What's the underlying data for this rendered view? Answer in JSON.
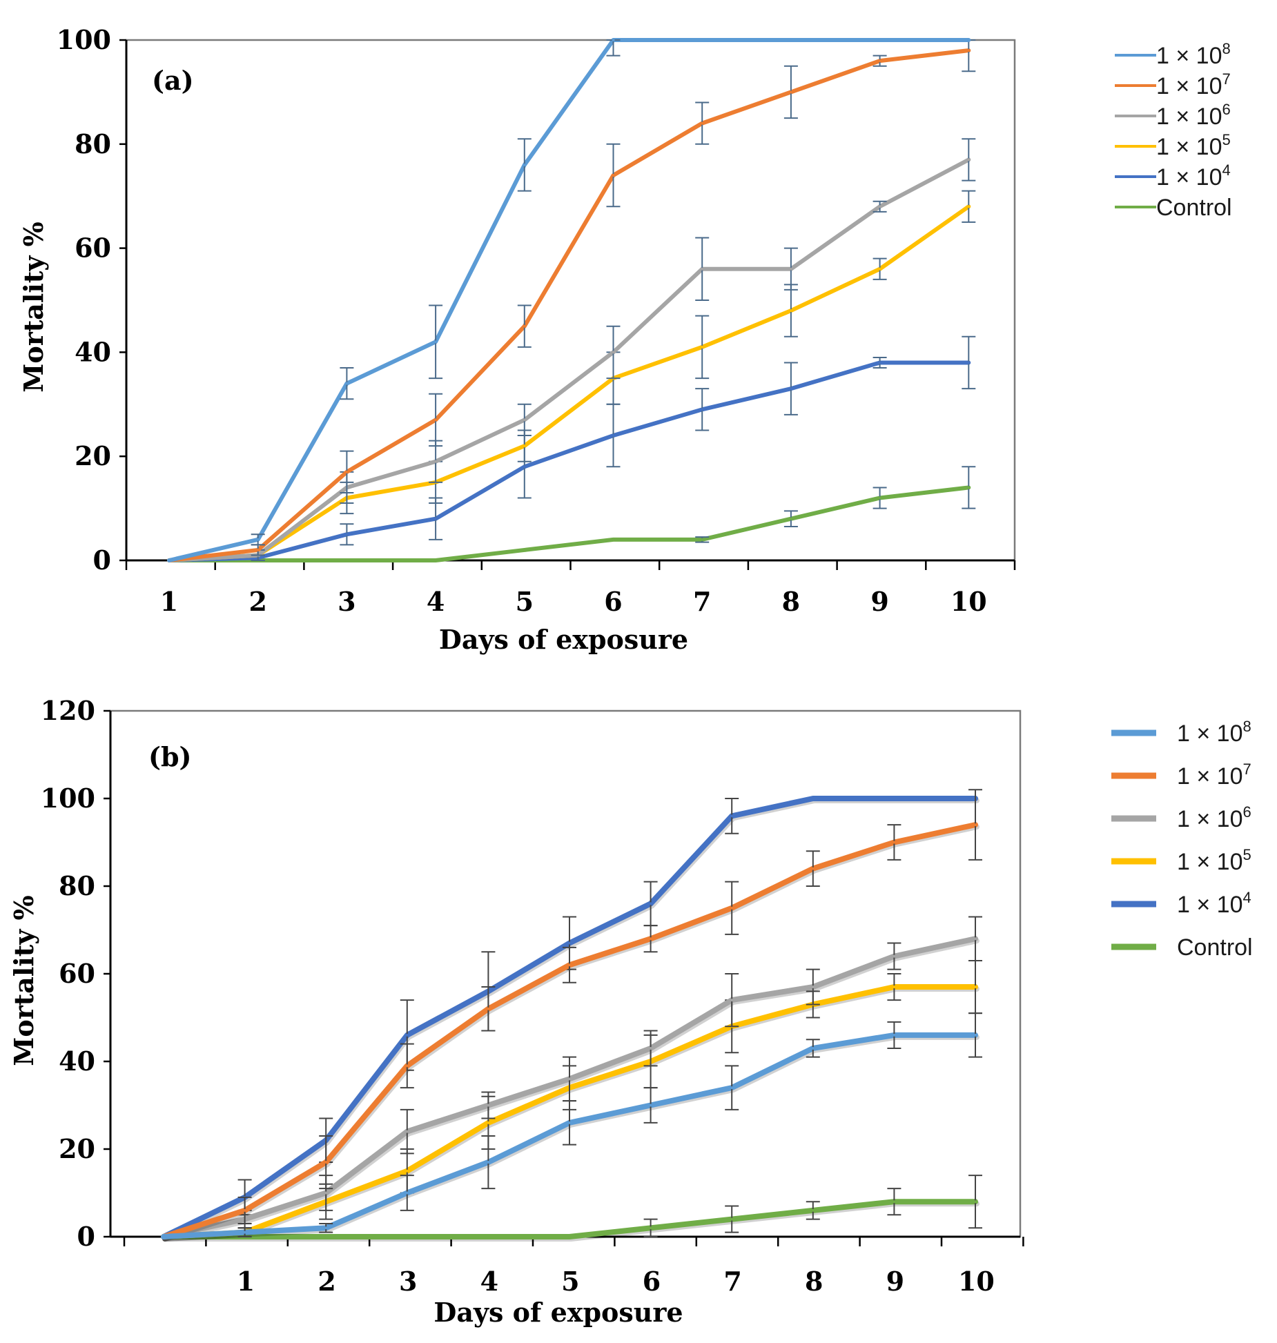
{
  "chart_data": [
    {
      "type": "line",
      "panel_label": "(a)",
      "xlabel": "Days of exposure",
      "ylabel": "Mortality %",
      "x": [
        1,
        2,
        3,
        4,
        5,
        6,
        7,
        8,
        9,
        10
      ],
      "x_tick_labels": [
        "1",
        "2",
        "3",
        "4",
        "5",
        "6",
        "7",
        "8",
        "9",
        "10"
      ],
      "ylim": [
        0,
        100
      ],
      "y_ticks": [
        0,
        20,
        40,
        60,
        80,
        100
      ],
      "y_tick_labels": [
        "0",
        "20",
        "40",
        "60",
        "80",
        "100"
      ],
      "legend_position": "right",
      "series": [
        {
          "name": "1 × 10",
          "exponent": "8",
          "color": "#5b9bd5",
          "values": [
            0,
            4,
            34,
            42,
            76,
            100,
            100,
            100,
            100,
            100
          ],
          "errors": [
            0,
            1,
            3,
            7,
            5,
            3,
            0,
            0,
            0,
            0
          ]
        },
        {
          "name": "1 × 10",
          "exponent": "7",
          "color": "#ed7d31",
          "values": [
            0,
            2,
            17,
            27,
            45,
            74,
            84,
            90,
            96,
            98
          ],
          "errors": [
            0,
            1,
            4,
            5,
            4,
            6,
            4,
            5,
            1,
            4
          ]
        },
        {
          "name": "1 × 10",
          "exponent": "6",
          "color": "#a5a5a5",
          "values": [
            0,
            1,
            14,
            19,
            27,
            40,
            56,
            56,
            68,
            77
          ],
          "errors": [
            0,
            1,
            3,
            4,
            3,
            5,
            6,
            4,
            1,
            4
          ]
        },
        {
          "name": "1 × 10",
          "exponent": "5",
          "color": "#ffc000",
          "values": [
            0,
            1,
            12,
            15,
            22,
            35,
            41,
            48,
            56,
            68
          ],
          "errors": [
            0,
            1,
            3,
            4,
            3,
            5,
            6,
            5,
            2,
            3
          ]
        },
        {
          "name": "1 × 10",
          "exponent": "4",
          "color": "#4472c4",
          "values": [
            0,
            0.5,
            5,
            8,
            18,
            24,
            29,
            33,
            38,
            38
          ],
          "errors": [
            0,
            0.5,
            2,
            4,
            6,
            6,
            4,
            5,
            1,
            5
          ]
        },
        {
          "name": "Control",
          "exponent": "",
          "color": "#70ad47",
          "values": [
            0,
            0,
            0,
            0,
            2,
            4,
            4,
            8,
            12,
            14
          ],
          "errors": [
            0,
            0,
            0,
            0,
            0,
            0,
            0.5,
            1.5,
            2,
            4
          ]
        }
      ]
    },
    {
      "type": "line",
      "panel_label": "(b)",
      "xlabel": "Days of exposure",
      "ylabel": "Mortality %",
      "x": [
        0,
        1,
        2,
        3,
        4,
        5,
        6,
        7,
        8,
        9,
        10
      ],
      "x_tick_labels": [
        "1",
        "2",
        "3",
        "4",
        "5",
        "6",
        "7",
        "8",
        "9",
        "10"
      ],
      "ylim": [
        0,
        120
      ],
      "y_ticks": [
        0,
        20,
        40,
        60,
        80,
        100,
        120
      ],
      "y_tick_labels": [
        "0",
        "20",
        "40",
        "60",
        "80",
        "100",
        "120"
      ],
      "legend_position": "right",
      "series": [
        {
          "name": "1 × 10",
          "exponent": "8",
          "color": "#5b9bd5",
          "values": [
            0,
            1,
            2,
            10,
            17,
            26,
            30,
            34,
            43,
            46,
            46
          ],
          "errors": [
            0,
            1,
            1,
            4,
            6,
            5,
            4,
            5,
            2,
            3,
            5
          ]
        },
        {
          "name": "1 × 10",
          "exponent": "7",
          "color": "#ed7d31",
          "values": [
            0,
            6,
            17,
            39,
            52,
            62,
            68,
            75,
            84,
            90,
            94
          ],
          "errors": [
            0,
            3,
            6,
            5,
            5,
            4,
            3,
            6,
            4,
            4,
            8
          ]
        },
        {
          "name": "1 × 10",
          "exponent": "6",
          "color": "#a5a5a5",
          "values": [
            0,
            4,
            10,
            24,
            30,
            36,
            43,
            54,
            57,
            64,
            68
          ],
          "errors": [
            0,
            2,
            4,
            5,
            3,
            5,
            4,
            6,
            4,
            3,
            5
          ]
        },
        {
          "name": "1 × 10",
          "exponent": "5",
          "color": "#ffc000",
          "values": [
            0,
            1,
            8,
            15,
            26,
            34,
            40,
            48,
            53,
            57,
            57
          ],
          "errors": [
            0,
            1,
            4,
            5,
            6,
            5,
            6,
            6,
            3,
            3,
            6
          ]
        },
        {
          "name": "1 × 10",
          "exponent": "4",
          "color": "#4472c4",
          "values": [
            0,
            9,
            22,
            46,
            56,
            67,
            76,
            96,
            100,
            100,
            100
          ],
          "errors": [
            0,
            4,
            5,
            8,
            9,
            6,
            5,
            4,
            0,
            0,
            0
          ]
        },
        {
          "name": "Control",
          "exponent": "",
          "color": "#70ad47",
          "values": [
            0,
            0,
            0,
            0,
            0,
            0,
            2,
            4,
            6,
            8,
            8
          ],
          "errors": [
            0,
            0,
            0,
            0,
            0,
            0,
            2,
            3,
            2,
            3,
            6
          ]
        }
      ]
    }
  ]
}
